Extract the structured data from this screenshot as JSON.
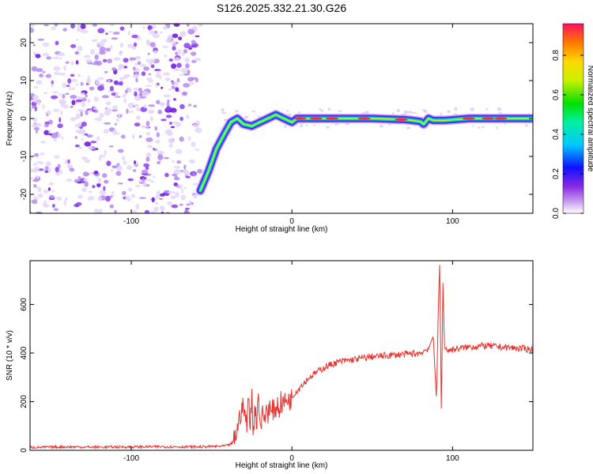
{
  "figure": {
    "title": "S126.2025.332.21.30.G26"
  },
  "chart_data": [
    {
      "type": "heatmap",
      "panel": "spectrogram",
      "xlabel": "Height of straight line (km)",
      "ylabel": "Frequency (Hz)",
      "xlim": [
        -163,
        150
      ],
      "ylim": [
        -25,
        25
      ],
      "xticks": [
        -100,
        0,
        100
      ],
      "xtick_labels": [
        "-100",
        "0",
        "100"
      ],
      "yticks": [
        -20,
        -10,
        0,
        10,
        20
      ],
      "ytick_labels": [
        "-20",
        "-10",
        "0",
        "10",
        "20"
      ],
      "noise_region": {
        "x_from": -163,
        "x_to": -57,
        "y_from": -25,
        "y_to": 25
      },
      "ridge": {
        "x": [
          -57,
          -52,
          -47,
          -42,
          -38,
          -34,
          -30,
          -25,
          -20,
          -15,
          -10,
          -5,
          0,
          3,
          10,
          30,
          50,
          70,
          75,
          80,
          82,
          85,
          88,
          95,
          110,
          130,
          150
        ],
        "y": [
          -19,
          -14,
          -8,
          -4,
          -1,
          0,
          -1.5,
          -2,
          -1,
          0,
          1,
          0,
          -1,
          0,
          0,
          0,
          0,
          -0.3,
          -0.5,
          -0.8,
          -1.5,
          0,
          -0.5,
          -0.5,
          0,
          0,
          0
        ]
      },
      "colorbar": {
        "label": "Normalized spectral amplitude",
        "ticks": [
          0.0,
          0.2,
          0.4,
          0.6,
          0.8
        ],
        "tick_labels": [
          "0.0",
          "0.2",
          "0.4",
          "0.6",
          "0.8"
        ],
        "range": [
          0,
          0.96
        ]
      }
    },
    {
      "type": "line",
      "panel": "snr",
      "xlabel": "Height of straight line (km)",
      "ylabel": "SNR (10 * v/v)",
      "xlim": [
        -163,
        150
      ],
      "ylim": [
        0,
        780
      ],
      "xticks": [
        -100,
        0,
        100
      ],
      "xtick_labels": [
        "-100",
        "0",
        "100"
      ],
      "yticks": [
        0,
        200,
        400,
        600
      ],
      "ytick_labels": [
        "0",
        "200",
        "400",
        "600"
      ],
      "color": "#e8322d",
      "series": [
        {
          "name": "SNR",
          "x": [
            -163,
            -140,
            -120,
            -100,
            -80,
            -60,
            -45,
            -40,
            -37,
            -35,
            -33,
            -31,
            -29,
            -28,
            -27,
            -26,
            -25,
            -24,
            -23,
            -22,
            -21,
            -20,
            -19,
            -18,
            -17,
            -16,
            -15,
            -14,
            -13,
            -12,
            -11,
            -10,
            -9,
            -8,
            -7,
            -6,
            -5,
            -4,
            -3,
            -2,
            -1,
            0,
            2,
            4,
            6,
            8,
            10,
            15,
            20,
            25,
            30,
            40,
            50,
            60,
            70,
            80,
            85,
            88,
            90,
            91,
            92,
            93,
            94,
            95,
            97,
            100,
            110,
            120,
            130,
            140,
            150
          ],
          "y": [
            12,
            14,
            13,
            14,
            15,
            14,
            16,
            20,
            30,
            60,
            120,
            180,
            150,
            80,
            260,
            90,
            230,
            60,
            200,
            100,
            240,
            140,
            100,
            170,
            110,
            180,
            150,
            190,
            140,
            170,
            160,
            175,
            190,
            165,
            200,
            190,
            205,
            190,
            215,
            205,
            210,
            215,
            240,
            250,
            270,
            280,
            295,
            320,
            340,
            355,
            365,
            375,
            385,
            390,
            395,
            400,
            420,
            470,
            200,
            560,
            780,
            150,
            690,
            420,
            410,
            415,
            425,
            430,
            425,
            420,
            415
          ]
        }
      ]
    }
  ],
  "colors": {
    "trace": "#e8322d",
    "noise_dark": "#7a1fe0",
    "noise_light": "#d9c8f7"
  }
}
